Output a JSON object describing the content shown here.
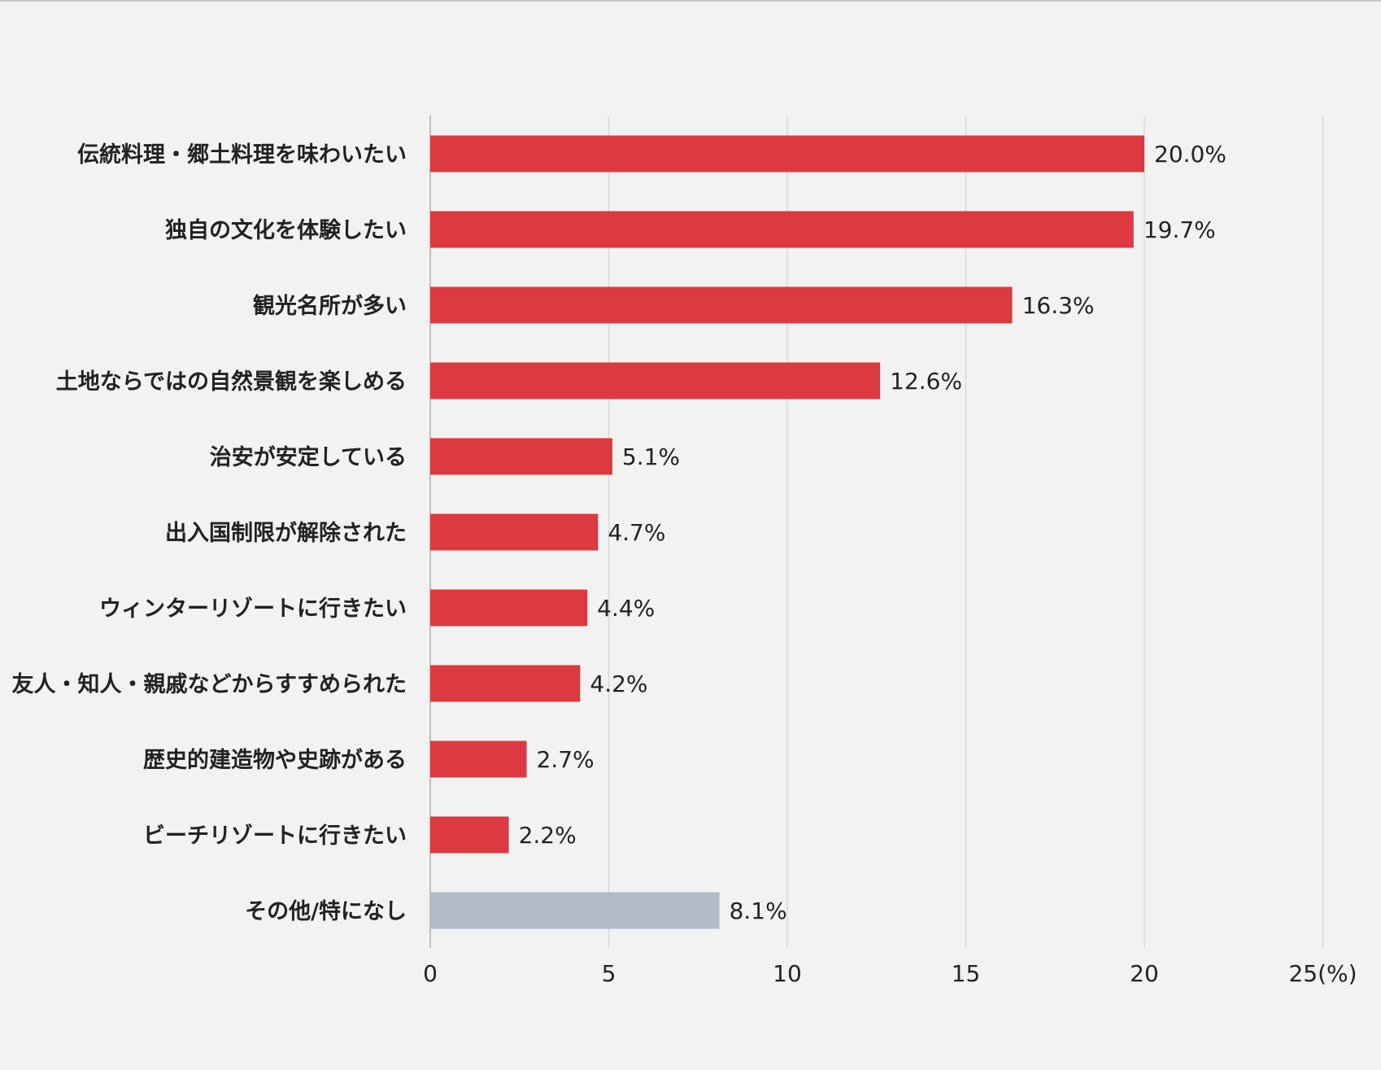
{
  "chart_data": {
    "type": "bar",
    "orientation": "horizontal",
    "title": "",
    "xlabel": "",
    "ylabel": "",
    "xlim": [
      0,
      25
    ],
    "unit_label": "(%)",
    "ticks": [
      0,
      5,
      10,
      15,
      20,
      25
    ],
    "tick_labels": [
      "0",
      "5",
      "10",
      "15",
      "20",
      "25(%)"
    ],
    "grid": true,
    "categories": [
      "伝統料理・郷土料理を味わいたい",
      "独自の文化を体験したい",
      "観光名所が多い",
      "土地ならではの自然景観を楽しめる",
      "治安が安定している",
      "出入国制限が解除された",
      "ウィンターリゾートに行きたい",
      "友人・知人・親戚などからすすめられた",
      "歴史的建造物や史跡がある",
      "ビーチリゾートに行きたい",
      "その他/特になし"
    ],
    "values": [
      20.0,
      19.7,
      16.3,
      12.6,
      5.1,
      4.7,
      4.4,
      4.2,
      2.7,
      2.2,
      8.1
    ],
    "value_labels": [
      "20.0%",
      "19.7%",
      "16.3%",
      "12.6%",
      "5.1%",
      "4.7%",
      "4.4%",
      "4.2%",
      "2.7%",
      "2.2%",
      "8.1%"
    ],
    "colors": {
      "primary": "#dc3a40",
      "other": "#b1bcc8",
      "grid": "#d9d9d9",
      "axis": "#bfbfbf",
      "background": "#f2f2f2"
    },
    "bar_color_keys": [
      "primary",
      "primary",
      "primary",
      "primary",
      "primary",
      "primary",
      "primary",
      "primary",
      "primary",
      "primary",
      "other"
    ]
  }
}
